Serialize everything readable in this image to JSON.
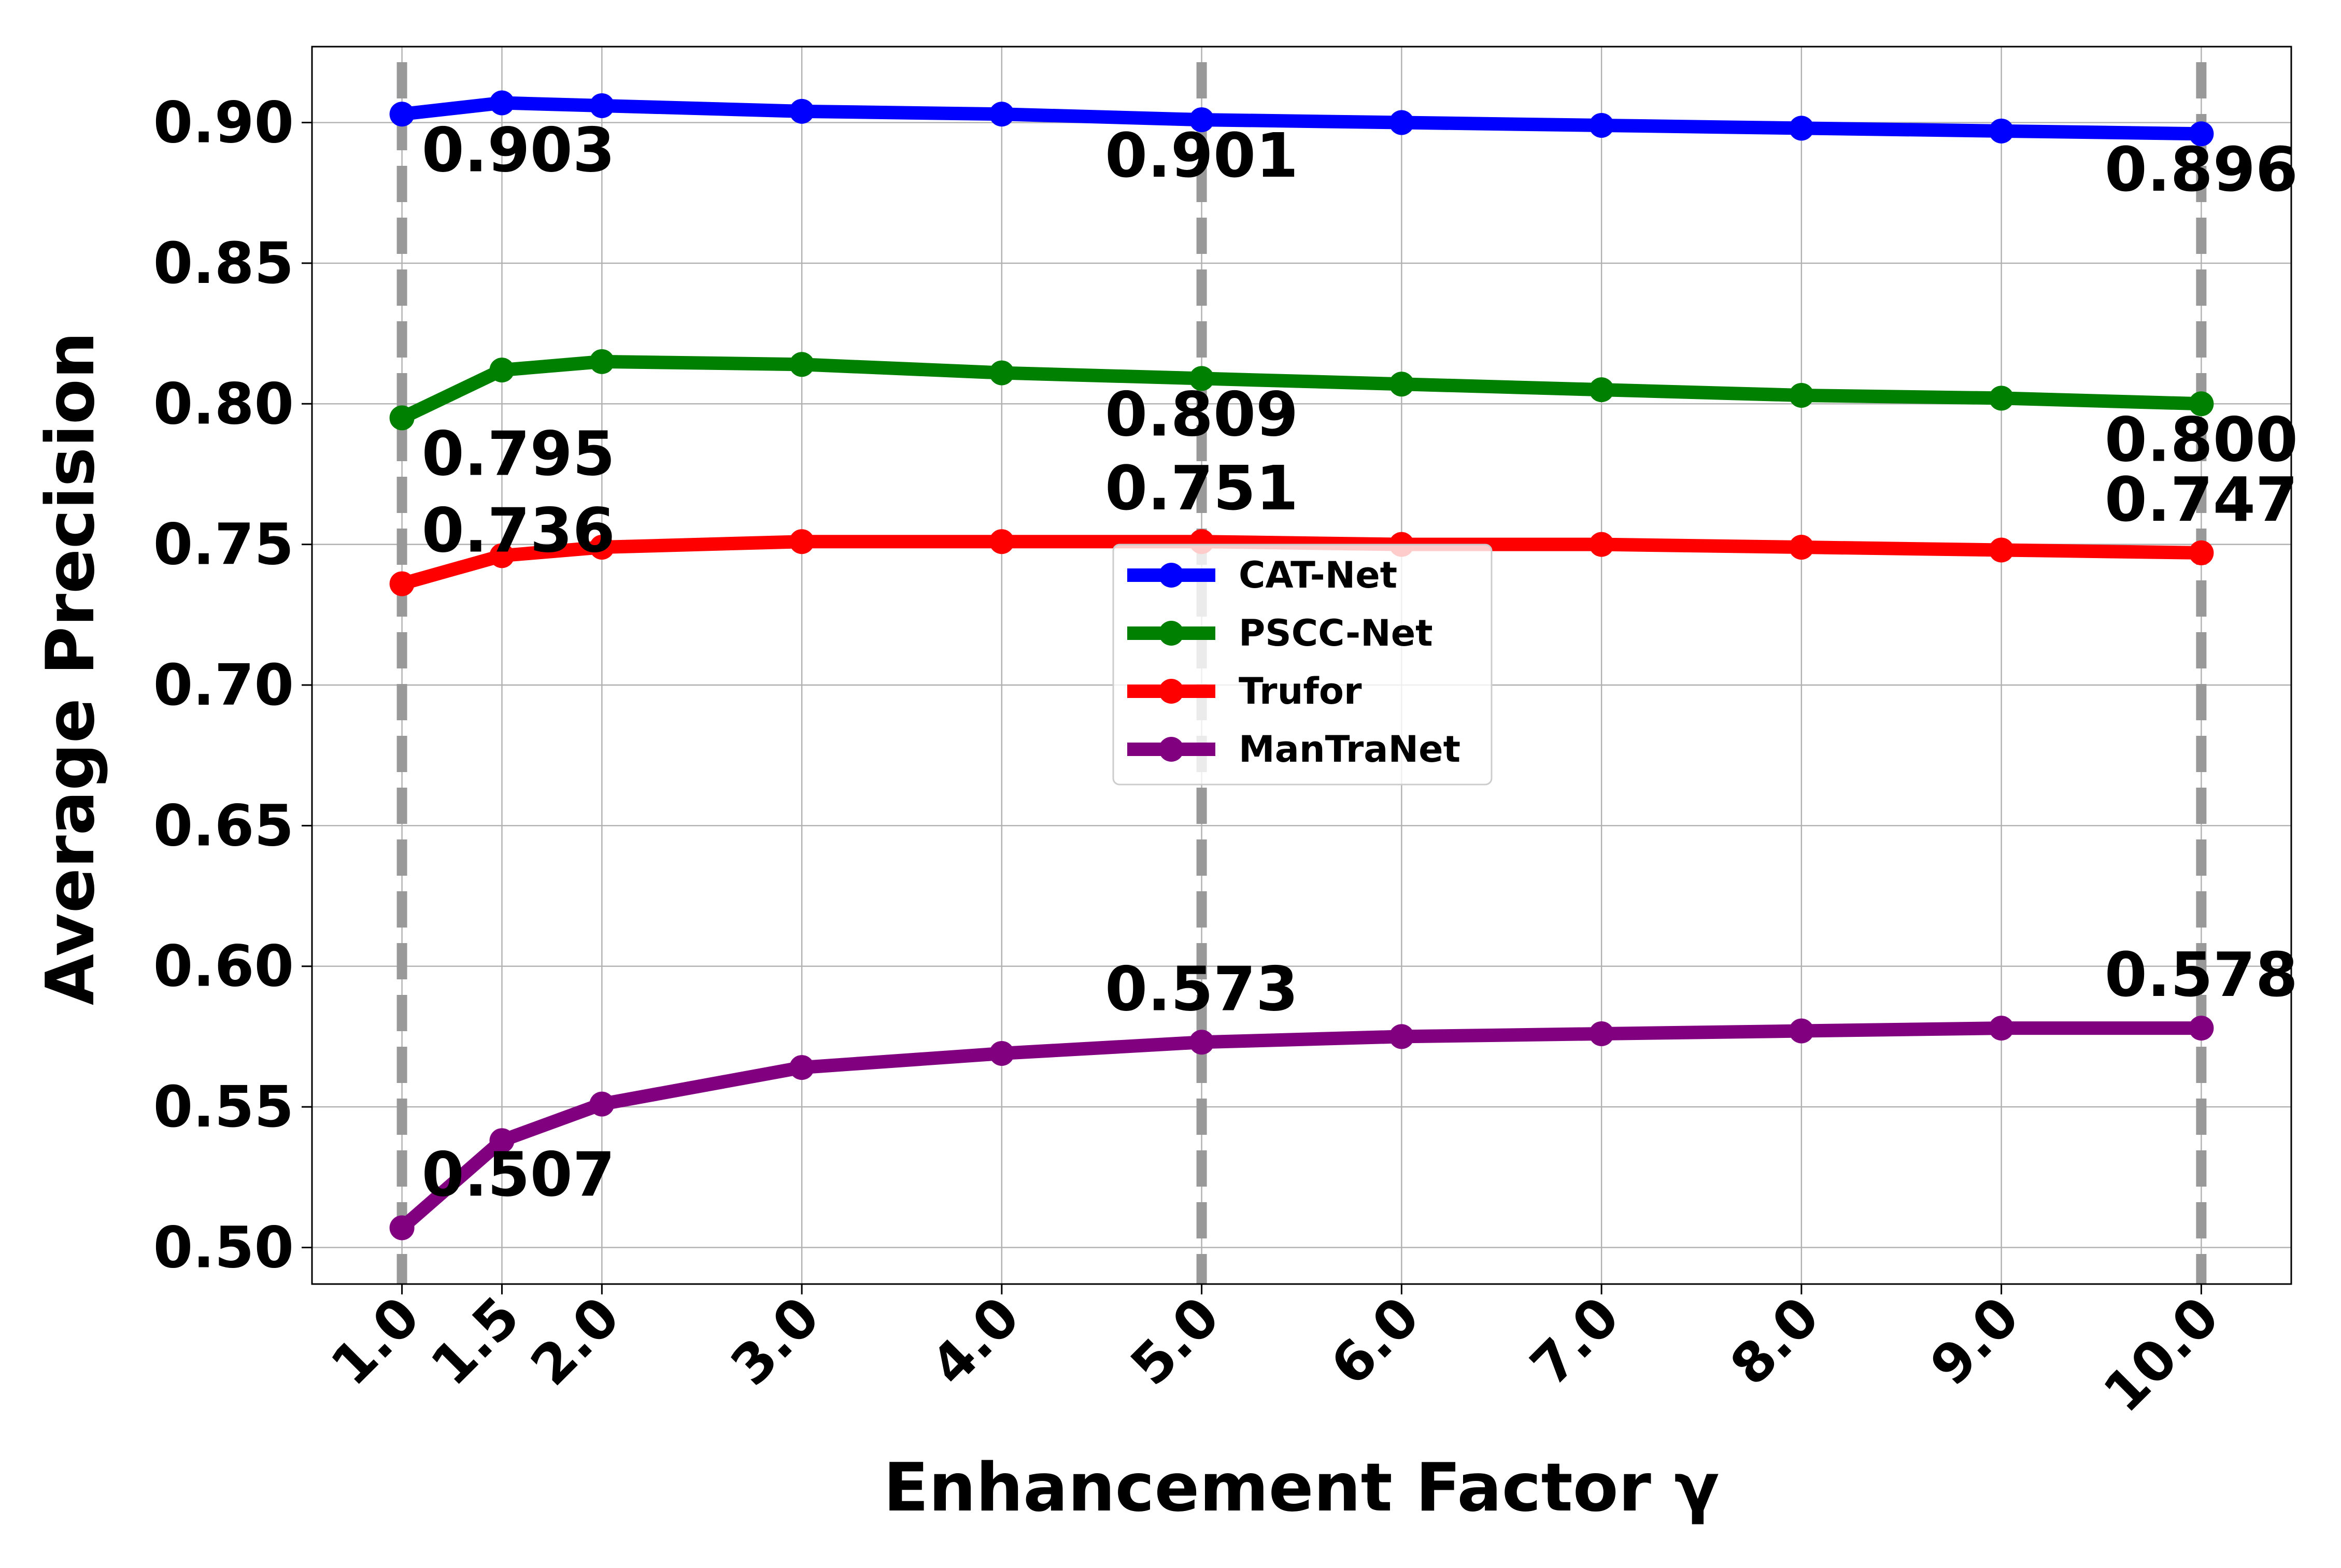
{
  "chart_data": {
    "type": "line",
    "title": "",
    "xlabel": "Enhancement Factor γ",
    "ylabel": "Average Precision",
    "x": [
      1.0,
      1.5,
      2.0,
      3.0,
      4.0,
      5.0,
      6.0,
      7.0,
      8.0,
      9.0,
      10.0
    ],
    "x_tick_labels": [
      "1.0",
      "1.5",
      "2.0",
      "3.0",
      "4.0",
      "5.0",
      "6.0",
      "7.0",
      "8.0",
      "9.0",
      "10.0"
    ],
    "y_ticks": [
      0.5,
      0.55,
      0.6,
      0.65,
      0.7,
      0.75,
      0.8,
      0.85,
      0.9
    ],
    "y_tick_labels": [
      "0.50",
      "0.55",
      "0.60",
      "0.65",
      "0.70",
      "0.75",
      "0.80",
      "0.85",
      "0.90"
    ],
    "xlim": [
      0.55,
      10.45
    ],
    "ylim": [
      0.487,
      0.927
    ],
    "grid": true,
    "legend_position": "center",
    "reference_lines_x": [
      1.0,
      5.0,
      10.0
    ],
    "reference_line_color": "#999999",
    "series": [
      {
        "name": "CAT-Net",
        "color": "#0000ff",
        "values": [
          0.903,
          0.907,
          0.906,
          0.904,
          0.903,
          0.901,
          0.9,
          0.899,
          0.898,
          0.897,
          0.896
        ]
      },
      {
        "name": "PSCC-Net",
        "color": "#008000",
        "values": [
          0.795,
          0.812,
          0.815,
          0.814,
          0.811,
          0.809,
          0.807,
          0.805,
          0.803,
          0.802,
          0.8
        ]
      },
      {
        "name": "Trufor",
        "color": "#ff0000",
        "values": [
          0.736,
          0.746,
          0.749,
          0.751,
          0.751,
          0.751,
          0.75,
          0.75,
          0.749,
          0.748,
          0.747
        ]
      },
      {
        "name": "ManTraNet",
        "color": "#800080",
        "values": [
          0.507,
          0.538,
          0.551,
          0.564,
          0.569,
          0.573,
          0.575,
          0.576,
          0.577,
          0.578,
          0.578
        ]
      }
    ],
    "annotations": [
      {
        "series": 0,
        "x": 1.0,
        "text": "0.903"
      },
      {
        "series": 0,
        "x": 5.0,
        "text": "0.901"
      },
      {
        "series": 0,
        "x": 10.0,
        "text": "0.896"
      },
      {
        "series": 1,
        "x": 1.0,
        "text": "0.795"
      },
      {
        "series": 1,
        "x": 5.0,
        "text": "0.809"
      },
      {
        "series": 1,
        "x": 10.0,
        "text": "0.800"
      },
      {
        "series": 2,
        "x": 1.0,
        "text": "0.736"
      },
      {
        "series": 2,
        "x": 5.0,
        "text": "0.751"
      },
      {
        "series": 2,
        "x": 10.0,
        "text": "0.747"
      },
      {
        "series": 3,
        "x": 1.0,
        "text": "0.507"
      },
      {
        "series": 3,
        "x": 5.0,
        "text": "0.573"
      },
      {
        "series": 3,
        "x": 10.0,
        "text": "0.578"
      }
    ]
  }
}
